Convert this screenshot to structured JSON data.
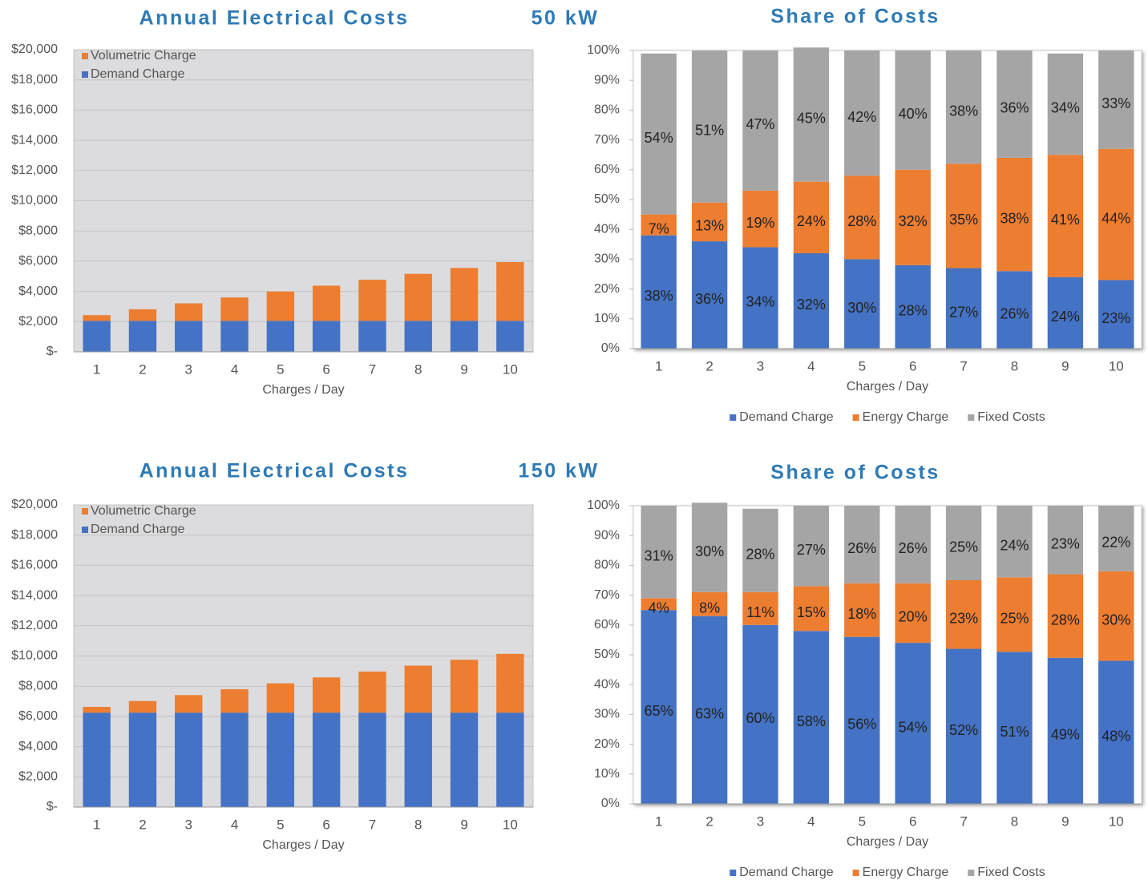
{
  "chart_data": [
    {
      "type": "bar",
      "stacked": true,
      "title": "Annual Electrical Costs",
      "subtitle": "50 kW",
      "x_label": "Charges / Day",
      "categories": [
        "1",
        "2",
        "3",
        "4",
        "5",
        "6",
        "7",
        "8",
        "9",
        "10"
      ],
      "series": [
        {
          "name": "Demand Charge",
          "color": "#4472c4",
          "values": [
            2050,
            2050,
            2050,
            2050,
            2050,
            2050,
            2050,
            2050,
            2050,
            2050
          ]
        },
        {
          "name": "Volumetric Charge",
          "color": "#ed7d31",
          "values": [
            380,
            770,
            1160,
            1550,
            1940,
            2330,
            2720,
            3110,
            3500,
            3890
          ]
        }
      ],
      "ylim": [
        0,
        20000
      ],
      "yticks": [
        {
          "value": 0,
          "label": "$-"
        },
        {
          "value": 2000,
          "label": "$2,000"
        },
        {
          "value": 4000,
          "label": "$4,000"
        },
        {
          "value": 6000,
          "label": "$6,000"
        },
        {
          "value": 8000,
          "label": "$8,000"
        },
        {
          "value": 10000,
          "label": "$10,000"
        },
        {
          "value": 12000,
          "label": "$12,000"
        },
        {
          "value": 14000,
          "label": "$14,000"
        },
        {
          "value": 16000,
          "label": "$16,000"
        },
        {
          "value": 18000,
          "label": "$18,000"
        },
        {
          "value": 20000,
          "label": "$20,000"
        }
      ],
      "grid": true,
      "legend": "upper left"
    },
    {
      "type": "bar",
      "stacked": true,
      "title": "Share of Costs",
      "x_label": "Charges / Day",
      "categories": [
        "1",
        "2",
        "3",
        "4",
        "5",
        "6",
        "7",
        "8",
        "9",
        "10"
      ],
      "series": [
        {
          "name": "Demand Charge",
          "color": "#4472c4",
          "values": [
            38,
            36,
            34,
            32,
            30,
            28,
            27,
            26,
            24,
            23
          ],
          "value_labels": [
            "38%",
            "36%",
            "34%",
            "32%",
            "30%",
            "28%",
            "27%",
            "26%",
            "24%",
            "23%"
          ]
        },
        {
          "name": "Energy Charge",
          "color": "#ed7d31",
          "values": [
            7,
            13,
            19,
            24,
            28,
            32,
            35,
            38,
            41,
            44
          ],
          "value_labels": [
            "7%",
            "13%",
            "19%",
            "24%",
            "28%",
            "32%",
            "35%",
            "38%",
            "41%",
            "44%"
          ]
        },
        {
          "name": "Fixed Costs",
          "color": "#a5a5a5",
          "values": [
            54,
            51,
            47,
            45,
            42,
            40,
            38,
            36,
            34,
            33
          ],
          "value_labels": [
            "54%",
            "51%",
            "47%",
            "45%",
            "42%",
            "40%",
            "38%",
            "36%",
            "34%",
            "33%"
          ]
        }
      ],
      "ylim": [
        0,
        100
      ],
      "yticks": [
        {
          "value": 0,
          "label": "0%"
        },
        {
          "value": 10,
          "label": "10%"
        },
        {
          "value": 20,
          "label": "20%"
        },
        {
          "value": 30,
          "label": "30%"
        },
        {
          "value": 40,
          "label": "40%"
        },
        {
          "value": 50,
          "label": "50%"
        },
        {
          "value": 60,
          "label": "60%"
        },
        {
          "value": 70,
          "label": "70%"
        },
        {
          "value": 80,
          "label": "80%"
        },
        {
          "value": 90,
          "label": "90%"
        },
        {
          "value": 100,
          "label": "100%"
        }
      ],
      "grid": false,
      "legend": "bottom"
    },
    {
      "type": "bar",
      "stacked": true,
      "title": "Annual Electrical Costs",
      "subtitle": "150 kW",
      "x_label": "Charges / Day",
      "categories": [
        "1",
        "2",
        "3",
        "4",
        "5",
        "6",
        "7",
        "8",
        "9",
        "10"
      ],
      "series": [
        {
          "name": "Demand Charge",
          "color": "#4472c4",
          "values": [
            6250,
            6250,
            6250,
            6250,
            6250,
            6250,
            6250,
            6250,
            6250,
            6250
          ]
        },
        {
          "name": "Volumetric Charge",
          "color": "#ed7d31",
          "values": [
            380,
            770,
            1160,
            1550,
            1940,
            2330,
            2720,
            3110,
            3500,
            3890
          ]
        }
      ],
      "ylim": [
        0,
        20000
      ],
      "yticks": [
        {
          "value": 0,
          "label": "$-"
        },
        {
          "value": 2000,
          "label": "$2,000"
        },
        {
          "value": 4000,
          "label": "$4,000"
        },
        {
          "value": 6000,
          "label": "$6,000"
        },
        {
          "value": 8000,
          "label": "$8,000"
        },
        {
          "value": 10000,
          "label": "$10,000"
        },
        {
          "value": 12000,
          "label": "$12,000"
        },
        {
          "value": 14000,
          "label": "$14,000"
        },
        {
          "value": 16000,
          "label": "$16,000"
        },
        {
          "value": 18000,
          "label": "$18,000"
        },
        {
          "value": 20000,
          "label": "$20,000"
        }
      ],
      "grid": true,
      "legend": "upper left"
    },
    {
      "type": "bar",
      "stacked": true,
      "title": "Share of Costs",
      "x_label": "Charges / Day",
      "categories": [
        "1",
        "2",
        "3",
        "4",
        "5",
        "6",
        "7",
        "8",
        "9",
        "10"
      ],
      "series": [
        {
          "name": "Demand Charge",
          "color": "#4472c4",
          "values": [
            65,
            63,
            60,
            58,
            56,
            54,
            52,
            51,
            49,
            48
          ],
          "value_labels": [
            "65%",
            "63%",
            "60%",
            "58%",
            "56%",
            "54%",
            "52%",
            "51%",
            "49%",
            "48%"
          ]
        },
        {
          "name": "Energy Charge",
          "color": "#ed7d31",
          "values": [
            4,
            8,
            11,
            15,
            18,
            20,
            23,
            25,
            28,
            30
          ],
          "value_labels": [
            "4%",
            "8%",
            "11%",
            "15%",
            "18%",
            "20%",
            "23%",
            "25%",
            "28%",
            "30%"
          ]
        },
        {
          "name": "Fixed Costs",
          "color": "#a5a5a5",
          "values": [
            31,
            30,
            28,
            27,
            26,
            26,
            25,
            24,
            23,
            22
          ],
          "value_labels": [
            "31%",
            "30%",
            "28%",
            "27%",
            "26%",
            "26%",
            "25%",
            "24%",
            "23%",
            "22%"
          ]
        }
      ],
      "ylim": [
        0,
        100
      ],
      "yticks": [
        {
          "value": 0,
          "label": "0%"
        },
        {
          "value": 10,
          "label": "10%"
        },
        {
          "value": 20,
          "label": "20%"
        },
        {
          "value": 30,
          "label": "30%"
        },
        {
          "value": 40,
          "label": "40%"
        },
        {
          "value": 50,
          "label": "50%"
        },
        {
          "value": 60,
          "label": "60%"
        },
        {
          "value": 70,
          "label": "70%"
        },
        {
          "value": 80,
          "label": "80%"
        },
        {
          "value": 90,
          "label": "90%"
        },
        {
          "value": 100,
          "label": "100%"
        }
      ],
      "grid": false,
      "legend": "bottom"
    }
  ]
}
